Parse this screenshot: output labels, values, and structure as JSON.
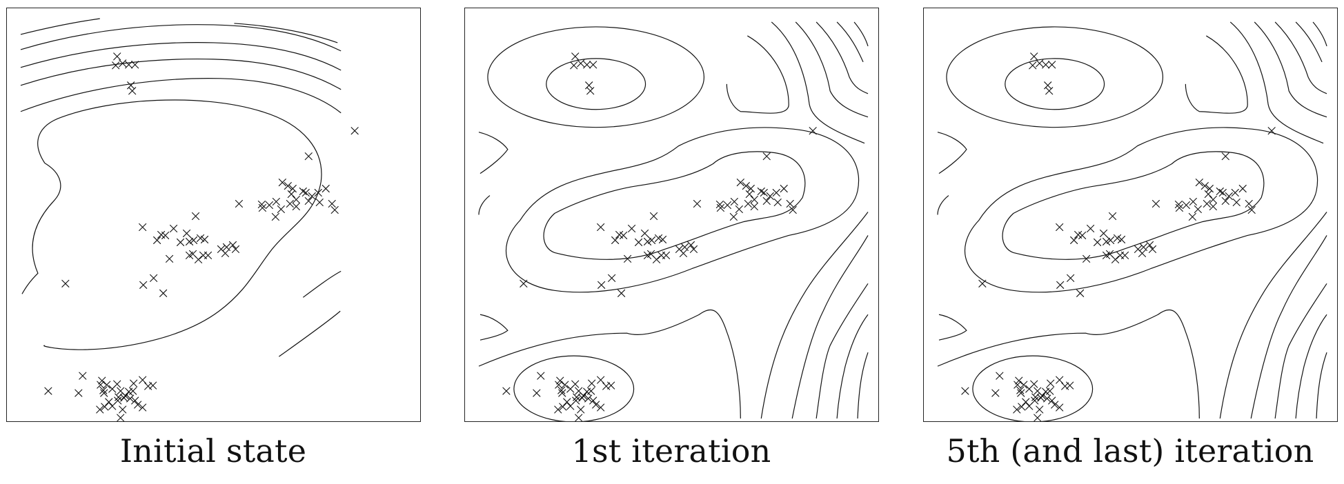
{
  "panels": [
    {
      "id": "initial",
      "caption": "Initial state"
    },
    {
      "id": "iter1",
      "caption": "1st iteration"
    },
    {
      "id": "iter5",
      "caption": "5th (and last) iteration"
    }
  ],
  "colors": {
    "line": "#111111",
    "frame": "#222222",
    "background": "#ffffff"
  }
}
